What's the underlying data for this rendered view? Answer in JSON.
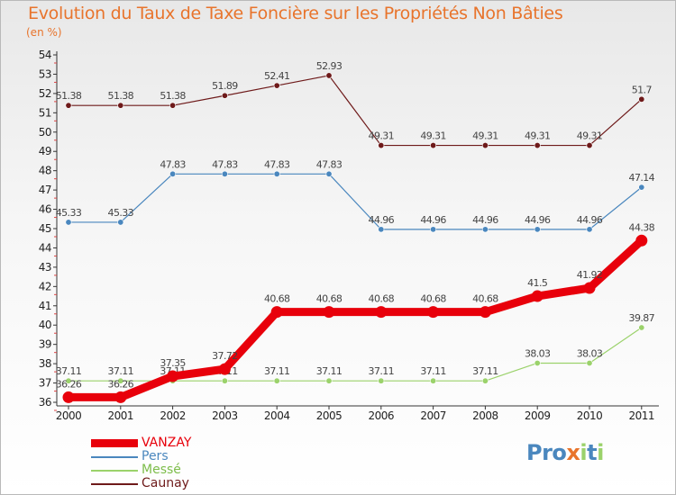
{
  "title": "Evolution du Taux de Taxe Foncière sur les Propriétés Non Bâties",
  "unit_label": "(en %)",
  "logo": "Proxiti",
  "chart_data": {
    "type": "line",
    "x": [
      "2000",
      "2001",
      "2002",
      "2003",
      "2004",
      "2005",
      "2006",
      "2007",
      "2008",
      "2009",
      "2010",
      "2011"
    ],
    "ylim": [
      36,
      54
    ],
    "yticks": [
      36,
      37,
      38,
      39,
      40,
      41,
      42,
      43,
      44,
      45,
      46,
      47,
      48,
      49,
      50,
      51,
      52,
      53,
      54
    ],
    "grid": false,
    "legend_position": "bottom-left",
    "series": [
      {
        "name": "VANZAY",
        "color": "#e8000b",
        "values": [
          36.26,
          36.26,
          37.35,
          37.72,
          40.68,
          40.68,
          40.68,
          40.68,
          40.68,
          41.5,
          41.92,
          44.38
        ],
        "labels": [
          "36.26",
          "36.26",
          "37.35",
          "37.72",
          "40.68",
          "40.68",
          "40.68",
          "40.68",
          "40.68",
          "41.5",
          "41.92",
          "44.38"
        ]
      },
      {
        "name": "Pers",
        "color": "#4a87be",
        "values": [
          45.33,
          45.33,
          47.83,
          47.83,
          47.83,
          47.83,
          44.96,
          44.96,
          44.96,
          44.96,
          44.96,
          47.14
        ],
        "labels": [
          "45.33",
          "45.33",
          "47.83",
          "47.83",
          "47.83",
          "47.83",
          "44.96",
          "44.96",
          "44.96",
          "44.96",
          "44.96",
          "47.14"
        ]
      },
      {
        "name": "Messé",
        "color": "#9bd26b",
        "values": [
          37.11,
          37.11,
          37.11,
          37.11,
          37.11,
          37.11,
          37.11,
          37.11,
          37.11,
          38.03,
          38.03,
          39.87
        ],
        "labels": [
          "37.11",
          "37.11",
          "37.11",
          "37.11",
          "37.11",
          "37.11",
          "37.11",
          "37.11",
          "37.11",
          "38.03",
          "38.03",
          "39.87"
        ]
      },
      {
        "name": "Caunay",
        "color": "#6e1a1a",
        "values": [
          51.38,
          51.38,
          51.38,
          51.89,
          52.41,
          52.93,
          49.31,
          49.31,
          49.31,
          49.31,
          49.31,
          51.7
        ],
        "labels": [
          "51.38",
          "51.38",
          "51.38",
          "51.89",
          "52.41",
          "52.93",
          "49.31",
          "49.31",
          "49.31",
          "49.31",
          "49.31",
          "51.7"
        ]
      }
    ]
  }
}
